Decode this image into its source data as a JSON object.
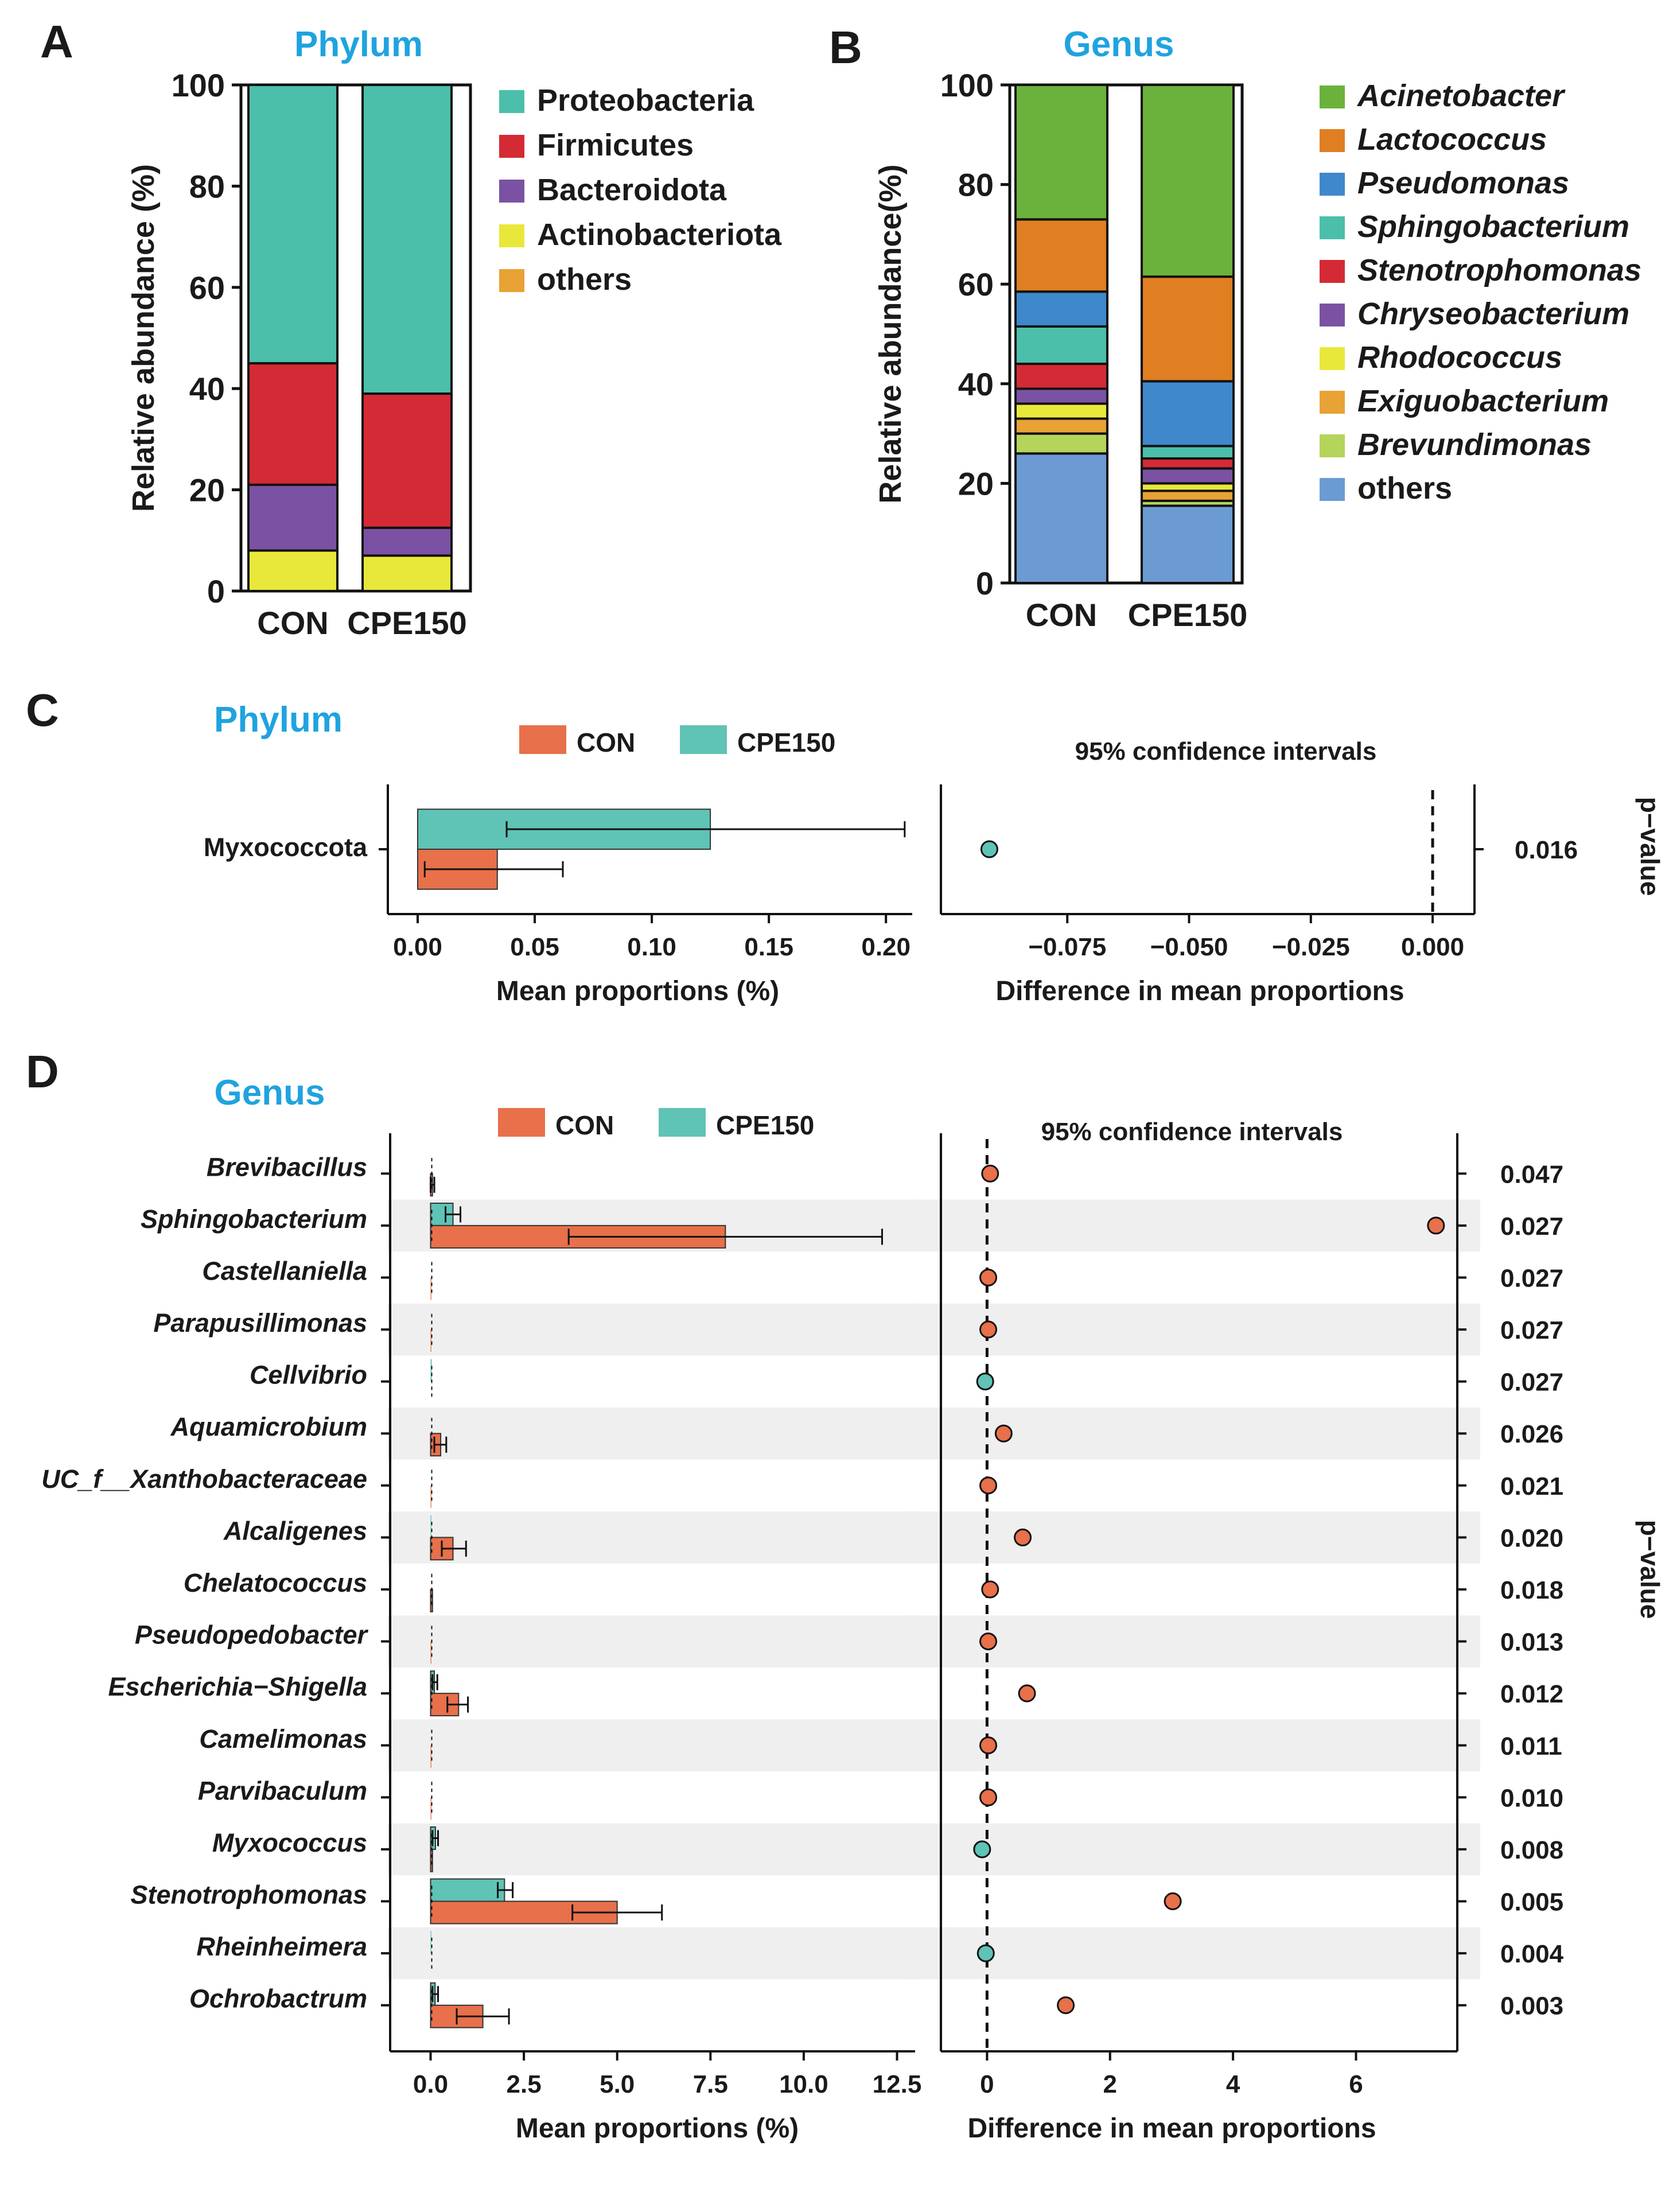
{
  "colors": {
    "title_blue": "#1FA3DF",
    "con": "#E8704A",
    "cpe150": "#5FC3B6",
    "alt_band": "#EFEFEF"
  },
  "chart_data": [
    {
      "panel": "A",
      "type": "bar",
      "stacked": true,
      "title": "Phylum",
      "ylabel": "Relative abundance (%)",
      "ylim": [
        0,
        100
      ],
      "yticks": [
        "0",
        "20",
        "40",
        "60",
        "80",
        "100"
      ],
      "categories": [
        "CON",
        "CPE150"
      ],
      "series": [
        {
          "name": "Actinobacteriota",
          "color": "#E8E83A",
          "values": [
            8.0,
            7.0
          ]
        },
        {
          "name": "Bacteroidota",
          "color": "#7B52A3",
          "values": [
            13.0,
            5.5
          ]
        },
        {
          "name": "Firmicutes",
          "color": "#D42A35",
          "values": [
            24.0,
            26.5
          ]
        },
        {
          "name": "Proteobacteria",
          "color": "#4BBFAA",
          "values": [
            55.0,
            61.0
          ]
        }
      ],
      "legend": [
        "Proteobacteria",
        "Firmicutes",
        "Bacteroidota",
        "Actinobacteriota",
        "others"
      ],
      "legend_colors": [
        "#4BBFAA",
        "#D42A35",
        "#7B52A3",
        "#E8E83A",
        "#E8A235"
      ]
    },
    {
      "panel": "B",
      "type": "bar",
      "stacked": true,
      "title": "Genus",
      "ylabel": "Relative abundance(%)",
      "ylim": [
        0,
        100
      ],
      "yticks": [
        "0",
        "20",
        "40",
        "60",
        "80",
        "100"
      ],
      "categories": [
        "CON",
        "CPE150"
      ],
      "series": [
        {
          "name": "others",
          "color": "#6B9BD2",
          "values": [
            26.0,
            15.5
          ]
        },
        {
          "name": "Brevundimonas",
          "color": "#B4D45A",
          "values": [
            4.0,
            1.0
          ]
        },
        {
          "name": "Exiguobacterium",
          "color": "#E8A235",
          "values": [
            3.0,
            2.0
          ]
        },
        {
          "name": "Rhodococcus",
          "color": "#E8E83A",
          "values": [
            3.0,
            1.5
          ]
        },
        {
          "name": "Chryseobacterium",
          "color": "#7B52A3",
          "values": [
            3.0,
            3.0
          ]
        },
        {
          "name": "Stenotrophomonas",
          "color": "#D42A35",
          "values": [
            5.0,
            2.0
          ]
        },
        {
          "name": "Sphingobacterium",
          "color": "#4BBFAA",
          "values": [
            7.5,
            2.5
          ]
        },
        {
          "name": "Pseudomonas",
          "color": "#3F88CC",
          "values": [
            7.0,
            13.0
          ]
        },
        {
          "name": "Lactococcus",
          "color": "#E07E22",
          "values": [
            14.5,
            21.0
          ]
        },
        {
          "name": "Acinetobacter",
          "color": "#6AB23C",
          "values": [
            27.0,
            38.5
          ]
        }
      ],
      "legend": [
        "Acinetobacter",
        "Lactococcus",
        "Pseudomonas",
        "Sphingobacterium",
        "Stenotrophomonas",
        "Chryseobacterium",
        "Rhodococcus",
        "Exiguobacterium",
        "Brevundimonas",
        "others"
      ],
      "legend_italic": [
        true,
        true,
        true,
        true,
        true,
        true,
        true,
        true,
        true,
        false
      ],
      "legend_colors": [
        "#6AB23C",
        "#E07E22",
        "#3F88CC",
        "#4BBFAA",
        "#D42A35",
        "#7B52A3",
        "#E8E83A",
        "#E8A235",
        "#B4D45A",
        "#6B9BD2"
      ]
    },
    {
      "panel": "C",
      "type": "bar",
      "orientation": "horizontal",
      "title": "Phylum",
      "legend": [
        "CON",
        "CPE150"
      ],
      "ci_title": "95% confidence intervals",
      "xlabel": "Mean proportions (%)",
      "xlabel_right": "Difference in mean proportions",
      "pvalue_label": "p−value",
      "xlim": [
        0,
        0.21
      ],
      "xticks": [
        "0.00",
        "0.05",
        "0.10",
        "0.15",
        "0.20"
      ],
      "diff_xlim": [
        -0.098,
        0.006
      ],
      "diff_xticks": [
        "−0.075",
        "−0.050",
        "−0.025",
        "0.000"
      ],
      "rows": [
        {
          "label": "Myxococcota",
          "con": 0.034,
          "con_err": [
            0.003,
            0.062
          ],
          "cpe": 0.125,
          "cpe_err": [
            0.038,
            0.208
          ],
          "diff": -0.091,
          "diff_sign": "cpe",
          "pvalue": "0.016"
        }
      ]
    },
    {
      "panel": "D",
      "type": "bar",
      "orientation": "horizontal",
      "title": "Genus",
      "legend": [
        "CON",
        "CPE150"
      ],
      "ci_title": "95% confidence intervals",
      "xlabel": "Mean proportions (%)",
      "xlabel_right": "Difference in mean proportions",
      "pvalue_label": "p−value",
      "xlim": [
        -0.5,
        12.8
      ],
      "xticks": [
        "0.0",
        "2.5",
        "5.0",
        "7.5",
        "10.0",
        "12.5"
      ],
      "diff_xlim": [
        -0.75,
        7.6
      ],
      "diff_xticks": [
        "0",
        "2",
        "4",
        "6"
      ],
      "rows": [
        {
          "label": "Brevibacillus",
          "con": 0.05,
          "con_err": [
            0.0,
            0.1
          ],
          "cpe": 0.0,
          "cpe_err": null,
          "diff": 0.05,
          "diff_sign": "con",
          "pvalue": "0.047"
        },
        {
          "label": "Sphingobacterium",
          "con": 7.9,
          "con_err": [
            3.7,
            12.1
          ],
          "cpe": 0.6,
          "cpe_err": [
            0.4,
            0.8
          ],
          "diff": 7.3,
          "diff_sign": "con",
          "pvalue": "0.027"
        },
        {
          "label": "Castellaniella",
          "con": 0.02,
          "con_err": null,
          "cpe": 0.0,
          "cpe_err": null,
          "diff": 0.02,
          "diff_sign": "con",
          "pvalue": "0.027"
        },
        {
          "label": "Parapusillimonas",
          "con": 0.02,
          "con_err": null,
          "cpe": 0.0,
          "cpe_err": null,
          "diff": 0.02,
          "diff_sign": "con",
          "pvalue": "0.027"
        },
        {
          "label": "Cellvibrio",
          "con": 0.0,
          "con_err": null,
          "cpe": 0.03,
          "cpe_err": null,
          "diff": -0.03,
          "diff_sign": "cpe",
          "pvalue": "0.027"
        },
        {
          "label": "Aquamicrobium",
          "con": 0.27,
          "con_err": [
            0.1,
            0.42
          ],
          "cpe": 0.0,
          "cpe_err": null,
          "diff": 0.27,
          "diff_sign": "con",
          "pvalue": "0.026"
        },
        {
          "label": "UC_f__Xanthobacteraceae",
          "con": 0.02,
          "con_err": null,
          "cpe": 0.0,
          "cpe_err": null,
          "diff": 0.02,
          "diff_sign": "con",
          "pvalue": "0.021"
        },
        {
          "label": "Alcaligenes",
          "con": 0.6,
          "con_err": [
            0.3,
            0.95
          ],
          "cpe": 0.02,
          "cpe_err": null,
          "diff": 0.58,
          "diff_sign": "con",
          "pvalue": "0.020"
        },
        {
          "label": "Chelatococcus",
          "con": 0.05,
          "con_err": null,
          "cpe": 0.0,
          "cpe_err": null,
          "diff": 0.05,
          "diff_sign": "con",
          "pvalue": "0.018"
        },
        {
          "label": "Pseudopedobacter",
          "con": 0.02,
          "con_err": null,
          "cpe": 0.0,
          "cpe_err": null,
          "diff": 0.02,
          "diff_sign": "con",
          "pvalue": "0.013"
        },
        {
          "label": "Escherichia−Shigella",
          "con": 0.75,
          "con_err": [
            0.45,
            1.0
          ],
          "cpe": 0.1,
          "cpe_err": [
            0.05,
            0.18
          ],
          "diff": 0.65,
          "diff_sign": "con",
          "pvalue": "0.012"
        },
        {
          "label": "Camelimonas",
          "con": 0.02,
          "con_err": null,
          "cpe": 0.0,
          "cpe_err": null,
          "diff": 0.02,
          "diff_sign": "con",
          "pvalue": "0.011"
        },
        {
          "label": "Parvibaculum",
          "con": 0.02,
          "con_err": null,
          "cpe": 0.0,
          "cpe_err": null,
          "diff": 0.02,
          "diff_sign": "con",
          "pvalue": "0.010"
        },
        {
          "label": "Myxococcus",
          "con": 0.05,
          "con_err": null,
          "cpe": 0.13,
          "cpe_err": [
            0.05,
            0.2
          ],
          "diff": -0.08,
          "diff_sign": "cpe",
          "pvalue": "0.008"
        },
        {
          "label": "Stenotrophomonas",
          "con": 5.0,
          "con_err": [
            3.8,
            6.2
          ],
          "cpe": 1.98,
          "cpe_err": [
            1.8,
            2.2
          ],
          "diff": 3.02,
          "diff_sign": "con",
          "pvalue": "0.005"
        },
        {
          "label": "Rheinheimera",
          "con": 0.0,
          "con_err": null,
          "cpe": 0.02,
          "cpe_err": null,
          "diff": -0.02,
          "diff_sign": "cpe",
          "pvalue": "0.004"
        },
        {
          "label": "Ochrobactrum",
          "con": 1.4,
          "con_err": [
            0.7,
            2.1
          ],
          "cpe": 0.12,
          "cpe_err": [
            0.05,
            0.2
          ],
          "diff": 1.28,
          "diff_sign": "con",
          "pvalue": "0.003"
        }
      ]
    }
  ],
  "panel_letters": [
    "A",
    "B",
    "C",
    "D"
  ]
}
